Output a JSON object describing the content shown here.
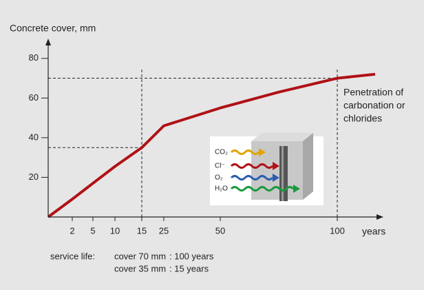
{
  "chart_data": {
    "type": "line",
    "y_axis_label": "Concrete cover, mm",
    "x_axis_label": "years",
    "annotation": [
      "Penetration of",
      "carbonation or",
      "chlorides"
    ],
    "x": [
      0,
      2,
      5,
      10,
      15,
      25,
      50,
      75,
      100,
      115
    ],
    "series": [
      {
        "color": "#b01116",
        "values": [
          0,
          9,
          17,
          25.5,
          35,
          46,
          55,
          63,
          70,
          72
        ]
      }
    ],
    "xlim": [
      0,
      115
    ],
    "xticks": [
      2,
      5,
      10,
      15,
      25,
      50,
      100
    ],
    "ylim": [
      0,
      90
    ],
    "yticks": [
      20,
      40,
      60,
      80
    ],
    "reference_points": [
      {
        "x": 100,
        "y": 70
      },
      {
        "x": 15,
        "y": 35
      }
    ],
    "footnote": {
      "label": "service life:",
      "rows": [
        [
          "cover 70 mm",
          ": 100 years"
        ],
        [
          "cover 35 mm",
          ": 15  years"
        ]
      ]
    }
  },
  "diagram": {
    "labels": [
      "CO₂",
      "Cl⁻",
      "O₂",
      "H₂O"
    ]
  }
}
